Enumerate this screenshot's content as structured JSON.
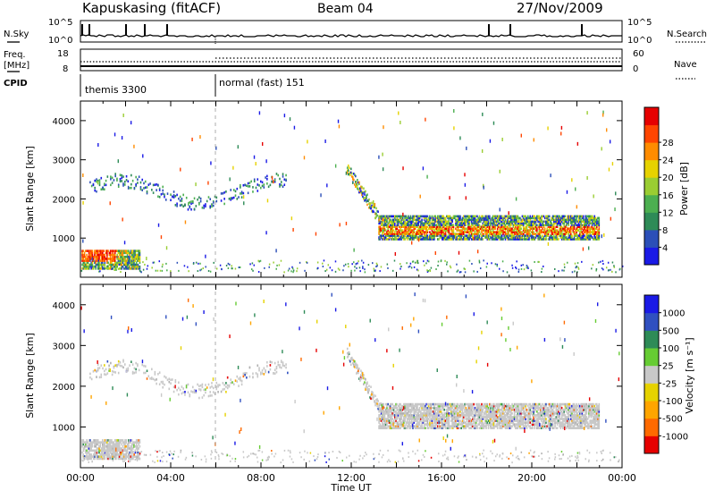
{
  "header": {
    "station": "Kapuskasing (fitACF)",
    "beam": "Beam 04",
    "date": "27/Nov/2009"
  },
  "left_labels": {
    "nsky": "N.Sky",
    "freq_line1": "Freq.",
    "freq_line2": "[MHz]",
    "cpid": "CPID"
  },
  "right_labels": {
    "nsearch": "N.Search",
    "nave": "Nave"
  },
  "ticks": {
    "nsky_top": "10^5",
    "nsky_bottom": "10^0",
    "freq_top": "18",
    "freq_bottom": "8",
    "nave_top": "60",
    "nave_bottom": "0"
  },
  "cpid_segments": [
    {
      "label": "themis 3300",
      "start": "00:00"
    },
    {
      "label": "normal (fast) 151",
      "start": "06:00"
    }
  ],
  "colors": {
    "power": [
      "#1a1ae6",
      "#2b4fb8",
      "#2e8b57",
      "#4caf50",
      "#9acd32",
      "#e6d200",
      "#ff8c00",
      "#ff4500",
      "#e60000"
    ],
    "velocity": [
      "#e60000",
      "#ff6a00",
      "#ffa500",
      "#e6d200",
      "#c8c8c8",
      "#66cc33",
      "#2e8b57",
      "#3050c0",
      "#1a1ae6"
    ]
  },
  "chart_data": [
    {
      "type": "heatmap",
      "title": "Power",
      "ylabel": "Slant Range [km]",
      "xlabel": "",
      "x_ticks": [
        "00:00",
        "04:00",
        "08:00",
        "12:00",
        "16:00",
        "20:00",
        "00:00"
      ],
      "y_ticks": [
        "1000",
        "2000",
        "3000",
        "4000"
      ],
      "ylim": [
        0,
        4500
      ],
      "colorbar_label": "Power [dB]",
      "colorbar_ticks": [
        "4",
        "8",
        "12",
        "16",
        "20",
        "24",
        "28"
      ],
      "colorbar_range": [
        0,
        30
      ]
    },
    {
      "type": "heatmap",
      "title": "Velocity",
      "ylabel": "Slant Range [km]",
      "xlabel": "Time UT",
      "x_ticks": [
        "00:00",
        "04:00",
        "08:00",
        "12:00",
        "16:00",
        "20:00",
        "00:00"
      ],
      "y_ticks": [
        "1000",
        "2000",
        "3000",
        "4000"
      ],
      "ylim": [
        0,
        4500
      ],
      "colorbar_label": "Velocity [m s⁻¹]",
      "colorbar_ticks": [
        "1000",
        "500",
        "100",
        "25",
        "-25",
        "-100",
        "-500",
        "-1000"
      ]
    }
  ]
}
